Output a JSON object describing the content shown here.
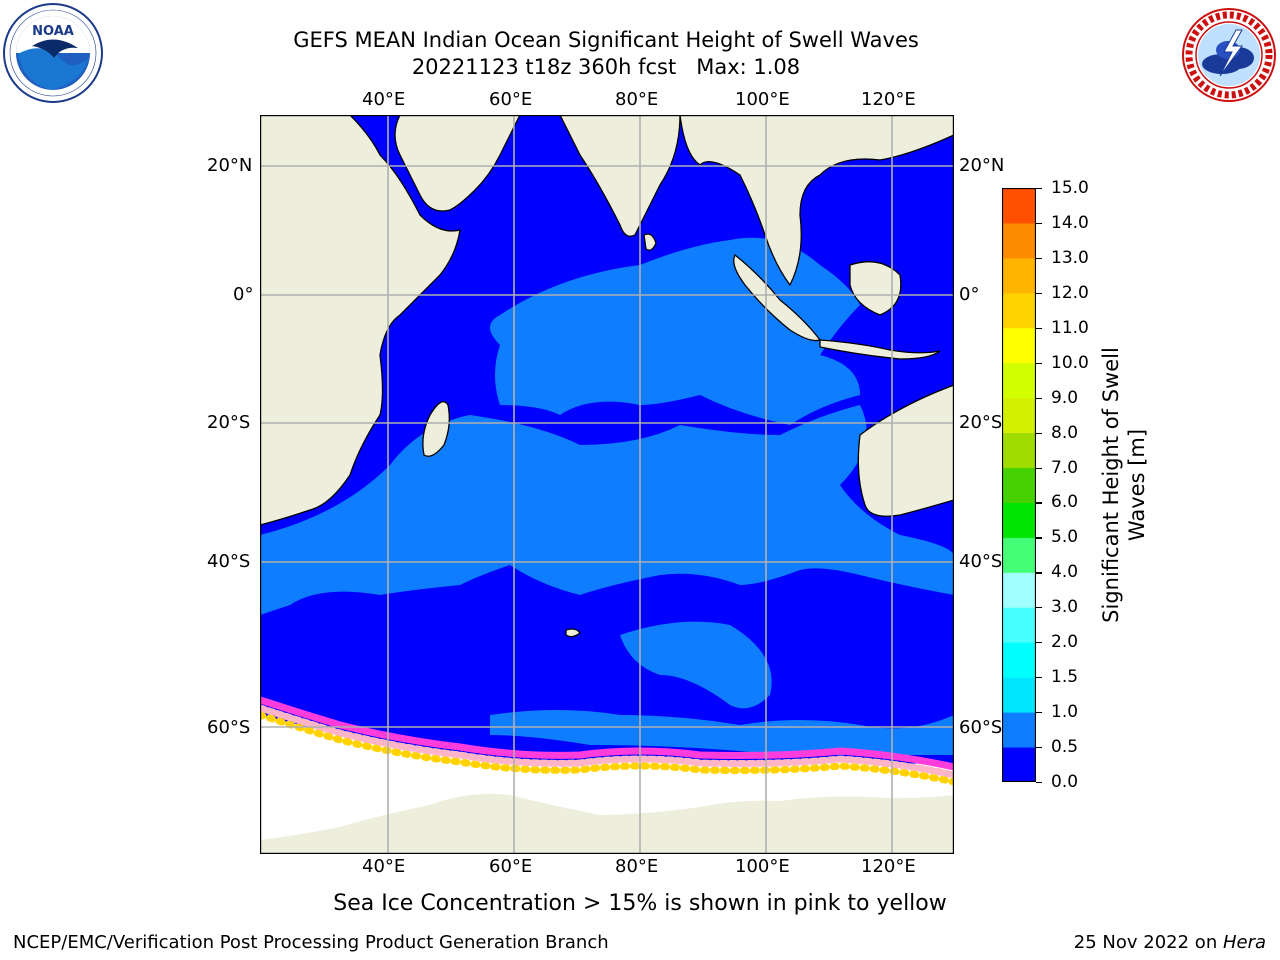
{
  "title": {
    "line1": "GEFS MEAN Indian Ocean Significant Height of Swell Waves",
    "line2": "20221123 t18z 360h fcst   Max: 1.08"
  },
  "logos": {
    "left": "NOAA",
    "left_ring": "NATIONAL OCEANIC AND ATMOSPHERIC ADMINISTRATION · U.S. DEPARTMENT OF COMMERCE",
    "right_ring": "NATIONAL WEATHER SERVICE"
  },
  "map": {
    "lon_labels": [
      "40°E",
      "60°E",
      "80°E",
      "100°E",
      "120°E"
    ],
    "lat_labels": [
      "20°N",
      "0°",
      "20°S",
      "40°S",
      "60°S"
    ],
    "colors": {
      "land": "#eeeedd",
      "ocean_low": "#0000ff",
      "ocean_mid": "#0f7dff",
      "ice": "#ffffff",
      "ice_edge": [
        "#ff3cdc",
        "#ffb4c8",
        "#ffd200",
        "#ff8c00"
      ],
      "grid": "#b0b0b0"
    }
  },
  "colorbar": {
    "label_line1": "Significant Height of Swell",
    "label_line2": "Waves [m]",
    "ticks": [
      "0.0",
      "0.5",
      "1.0",
      "1.5",
      "2.0",
      "3.0",
      "4.0",
      "5.0",
      "6.0",
      "7.0",
      "8.0",
      "9.0",
      "10.0",
      "11.0",
      "12.0",
      "13.0",
      "14.0",
      "15.0"
    ],
    "colors": [
      "#0000ff",
      "#0f7dff",
      "#00e6ff",
      "#00ffff",
      "#46ffff",
      "#a0ffff",
      "#46ff78",
      "#00e600",
      "#46d200",
      "#a0dc00",
      "#d2f000",
      "#d2ff00",
      "#ffff00",
      "#ffd200",
      "#ffb400",
      "#ff8c00",
      "#ff5000",
      "#ff2800",
      "#ff0000"
    ]
  },
  "footer": {
    "note": "Sea Ice Concentration > 15% is shown in pink to yellow",
    "left": "NCEP/EMC/Verification Post Processing Product Generation Branch",
    "right_date": "25 Nov 2022 on ",
    "right_machine": "Hera"
  }
}
